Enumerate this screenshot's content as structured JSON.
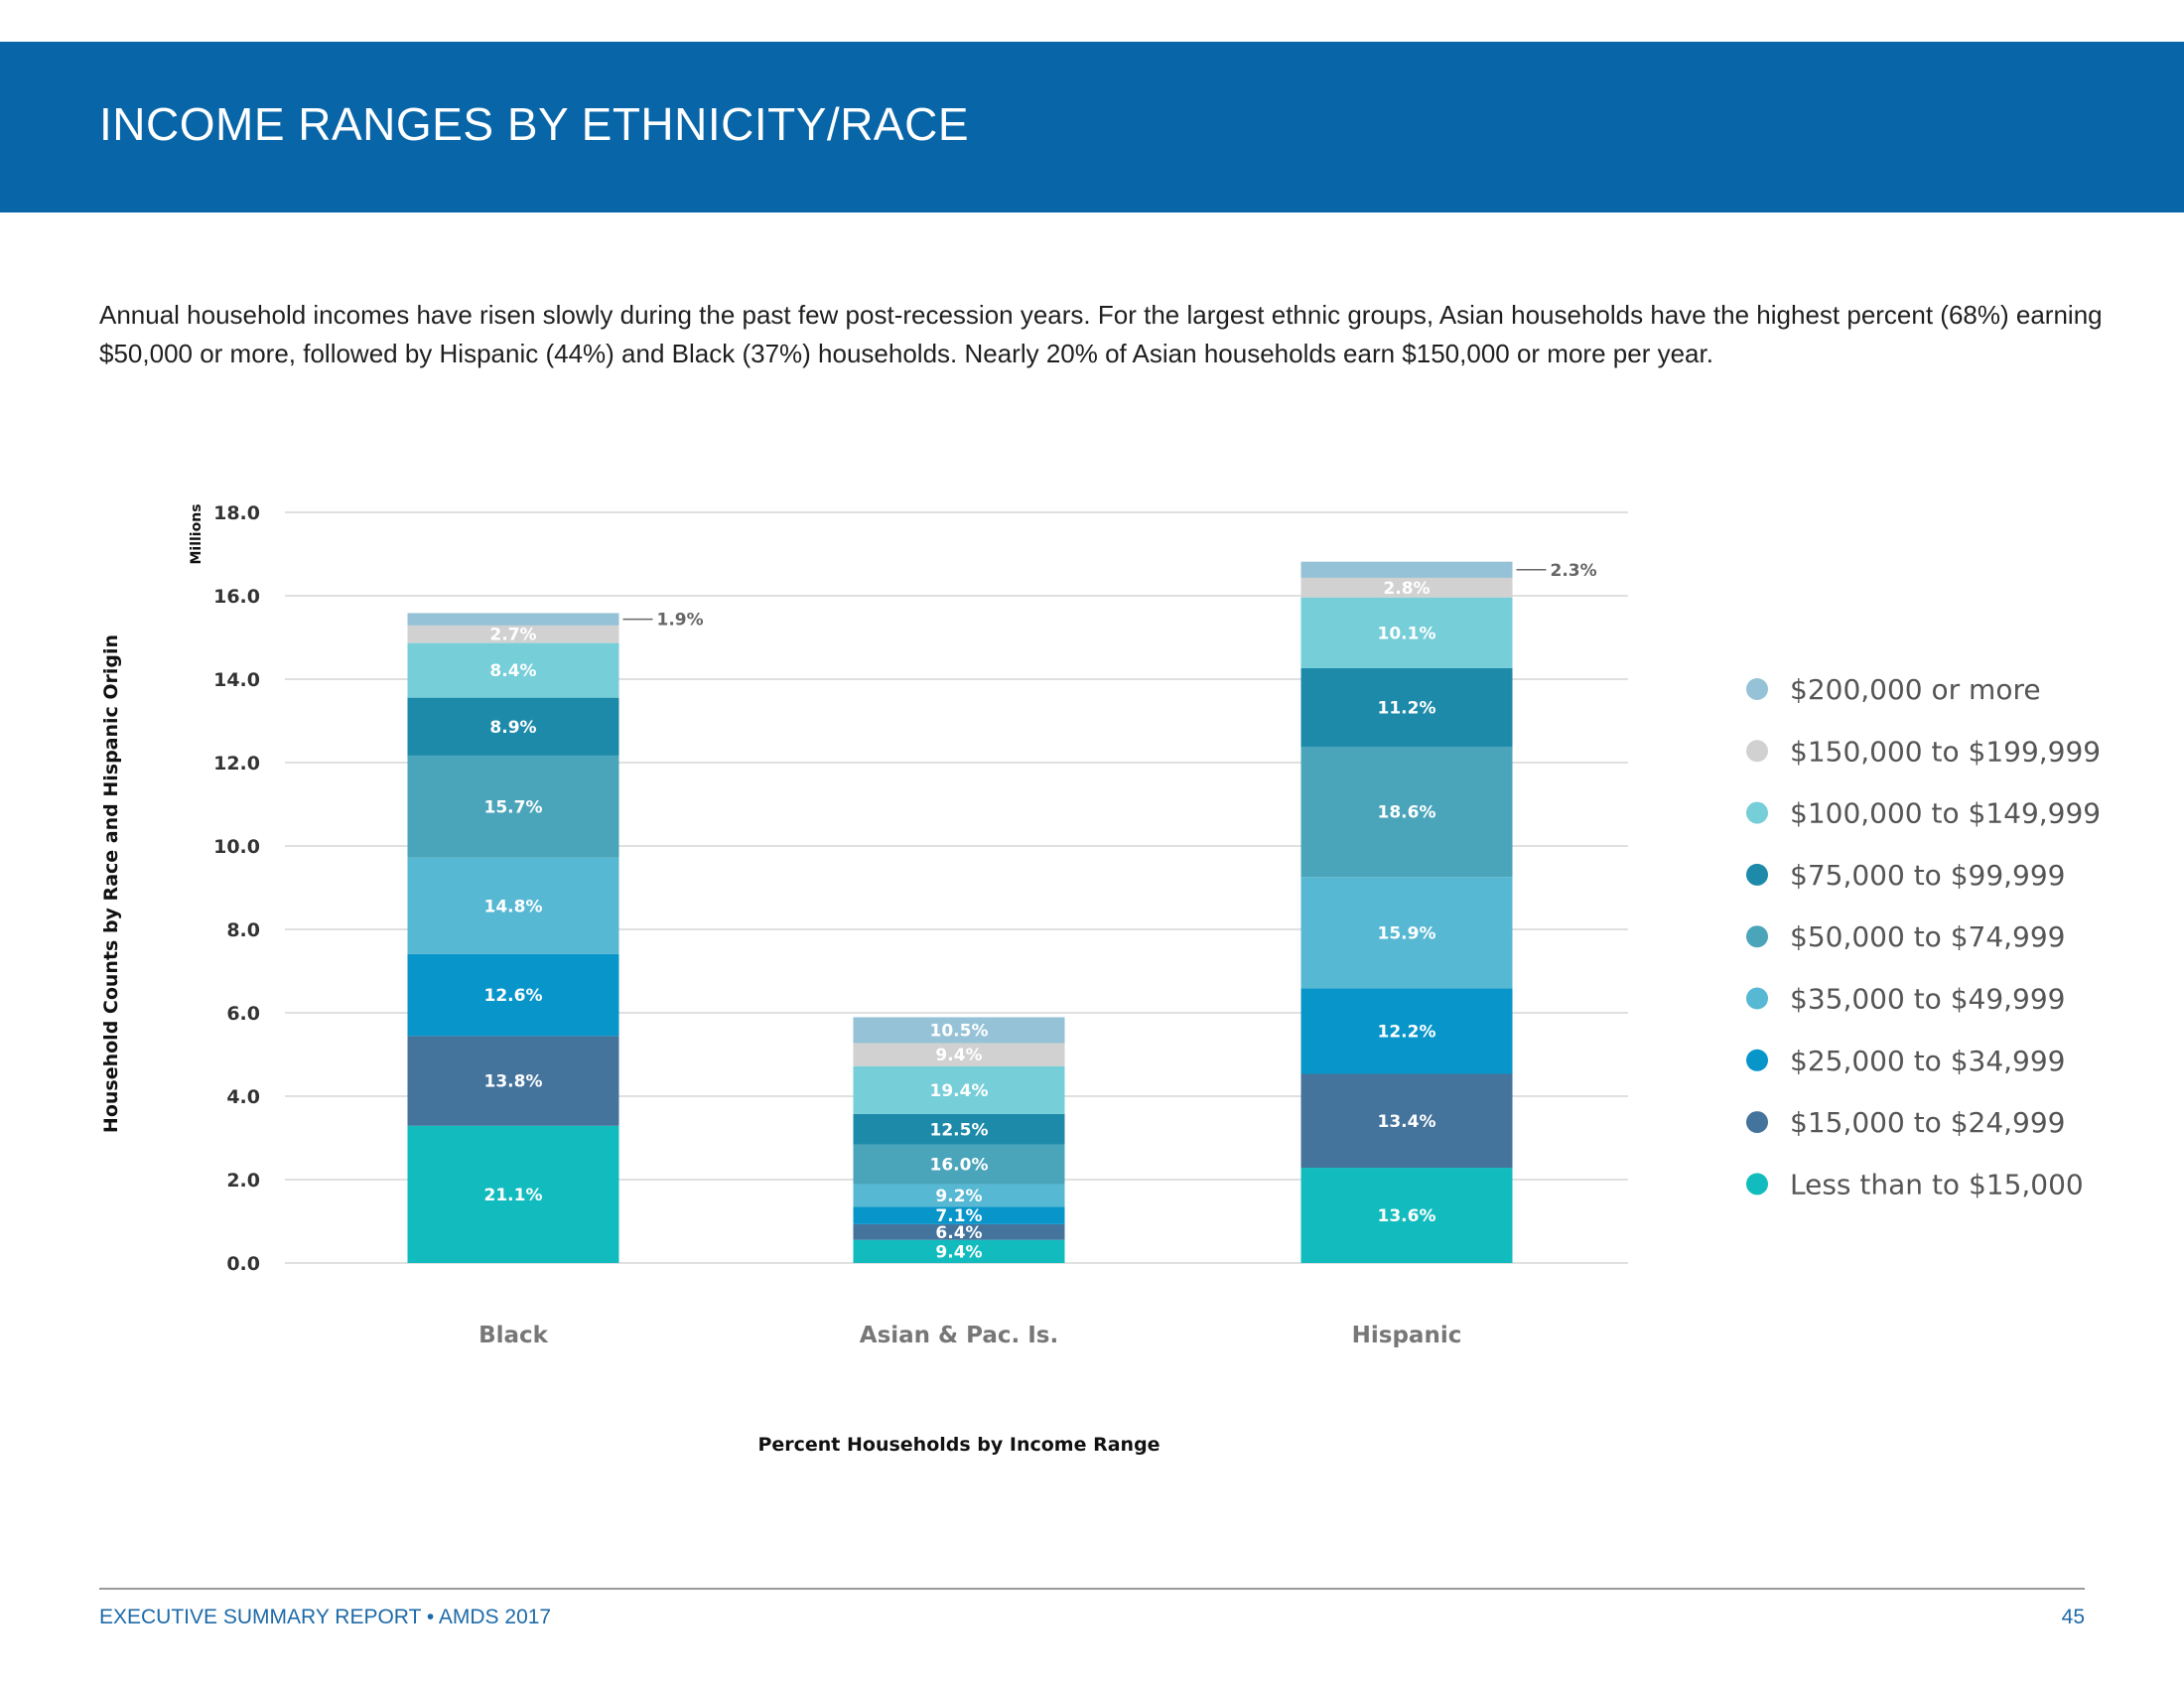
{
  "header": {
    "title": "INCOME RANGES BY ETHNICITY/RACE"
  },
  "intro": "Annual household incomes have risen slowly during the past few post-recession years. For the largest ethnic groups, Asian households have the highest percent (68%) earning $50,000 or more, followed by Hispanic (44%) and Black (37%) households. Nearly 20% of Asian households earn $150,000 or more per year.",
  "footer": {
    "left": "EXECUTIVE SUMMARY REPORT • AMDS 2017",
    "page_number": "45"
  },
  "chart_data": {
    "type": "bar",
    "stacked": true,
    "ylabel": "Household Counts by Race and Hispanic Origin",
    "yunit": "Millions",
    "xlabel": "Percent Households by Income Range",
    "ylim": [
      0,
      18
    ],
    "yticks": [
      0,
      2,
      4,
      6,
      8,
      10,
      12,
      14,
      16,
      18
    ],
    "ytick_labels": [
      "0.0",
      "2.0",
      "4.0",
      "6.0",
      "8.0",
      "10.0",
      "12.0",
      "14.0",
      "16.0",
      "18.0"
    ],
    "grid": true,
    "legend_position": "right",
    "categories": [
      "Black",
      "Asian & Pac. Is.",
      "Hispanic"
    ],
    "totals_millions": [
      15.6,
      5.9,
      16.8
    ],
    "series": [
      {
        "name": "Less than to $15,000",
        "color": "#12bcbe",
        "percents": [
          21.1,
          9.4,
          13.6
        ],
        "labels": [
          "21.1%",
          "9.4%",
          "13.6%"
        ]
      },
      {
        "name": "$15,000 to $24,999",
        "color": "#44739c",
        "percents": [
          13.8,
          6.4,
          13.4
        ],
        "labels": [
          "13.8%",
          "6.4%",
          "13.4%"
        ]
      },
      {
        "name": "$25,000 to $34,999",
        "color": "#0795ca",
        "percents": [
          12.6,
          7.1,
          12.2
        ],
        "labels": [
          "12.6%",
          "7.1%",
          "12.2%"
        ]
      },
      {
        "name": "$35,000 to $49,999",
        "color": "#56b8d2",
        "percents": [
          14.8,
          9.2,
          15.9
        ],
        "labels": [
          "14.8%",
          "9.2%",
          "15.9%"
        ]
      },
      {
        "name": "$50,000 to $74,999",
        "color": "#4aa5bb",
        "percents": [
          15.7,
          16.0,
          18.6
        ],
        "labels": [
          "15.7%",
          "16.0%",
          "18.6%"
        ]
      },
      {
        "name": "$75,000 to $99,999",
        "color": "#1d8aaa",
        "percents": [
          8.9,
          12.5,
          11.2
        ],
        "labels": [
          "8.9%",
          "12.5%",
          "11.2%"
        ]
      },
      {
        "name": "$100,000 to $149,999",
        "color": "#75ced8",
        "percents": [
          8.4,
          19.4,
          10.1
        ],
        "labels": [
          "8.4%",
          "19.4%",
          "10.1%"
        ]
      },
      {
        "name": "$150,000 to $199,999",
        "color": "#d1d1d1",
        "percents": [
          2.7,
          9.4,
          2.8
        ],
        "labels": [
          "2.7%",
          "9.4%",
          "2.8%"
        ]
      },
      {
        "name": "$200,000 or more",
        "color": "#95c2d6",
        "percents": [
          1.9,
          10.5,
          2.3
        ],
        "labels": [
          "1.9%",
          "10.5%",
          "2.3%"
        ],
        "label_outside": [
          true,
          false,
          true
        ]
      }
    ]
  }
}
